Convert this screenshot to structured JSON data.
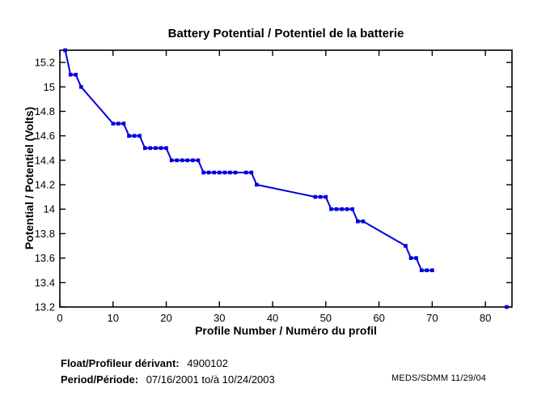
{
  "title": "Battery Potential / Potentiel de la batterie",
  "footer": {
    "float_label": "Float/Profileur dérivant:",
    "float_value": "4900102",
    "period_label": "Period/Période:",
    "period_value": "07/16/2001  to/à  10/24/2003",
    "credit": "MEDS/SDMM  11/29/04"
  },
  "chart_data": {
    "type": "line",
    "title": "Battery Potential / Potentiel de la batterie",
    "xlabel": "Profile Number / Numéro du profil",
    "ylabel": "Potential / Potentiel (Volts)",
    "xlim": [
      0,
      85
    ],
    "ylim": [
      13.2,
      15.3
    ],
    "grid": false,
    "legend": "none",
    "x_ticks": [
      0,
      10,
      20,
      30,
      40,
      50,
      60,
      70,
      80
    ],
    "y_ticks": [
      13.2,
      13.4,
      13.6,
      13.8,
      14,
      14.2,
      14.4,
      14.6,
      14.8,
      15,
      15.2
    ],
    "y_tick_labels": [
      "13.2",
      "13.4",
      "13.6",
      "13.8",
      "14",
      "14.2",
      "14.4",
      "14.6",
      "14.8",
      "15",
      "15.2"
    ],
    "line_color": "#0000dd",
    "marker_color": "#0000dd",
    "axis_color": "#000000",
    "series": [
      {
        "name": "battery-potential",
        "connected": true,
        "x": [
          1,
          2,
          3,
          4,
          10,
          11,
          12,
          13,
          14,
          15,
          16,
          17,
          18,
          19,
          20,
          21,
          22,
          23,
          24,
          25,
          26,
          27,
          28,
          29,
          30,
          31,
          32,
          33,
          35,
          36,
          37,
          48,
          49,
          50,
          51,
          52,
          53,
          54,
          55,
          56,
          57,
          65,
          66,
          67,
          68,
          69,
          70
        ],
        "y": [
          15.3,
          15.1,
          15.1,
          15.0,
          14.7,
          14.7,
          14.7,
          14.6,
          14.6,
          14.6,
          14.5,
          14.5,
          14.5,
          14.5,
          14.5,
          14.4,
          14.4,
          14.4,
          14.4,
          14.4,
          14.4,
          14.3,
          14.3,
          14.3,
          14.3,
          14.3,
          14.3,
          14.3,
          14.3,
          14.3,
          14.2,
          14.1,
          14.1,
          14.1,
          14.0,
          14.0,
          14.0,
          14.0,
          14.0,
          13.9,
          13.9,
          13.7,
          13.6,
          13.6,
          13.5,
          13.5,
          13.5
        ]
      },
      {
        "name": "final-isolated-point",
        "connected": false,
        "x": [
          84
        ],
        "y": [
          13.2
        ]
      }
    ]
  }
}
